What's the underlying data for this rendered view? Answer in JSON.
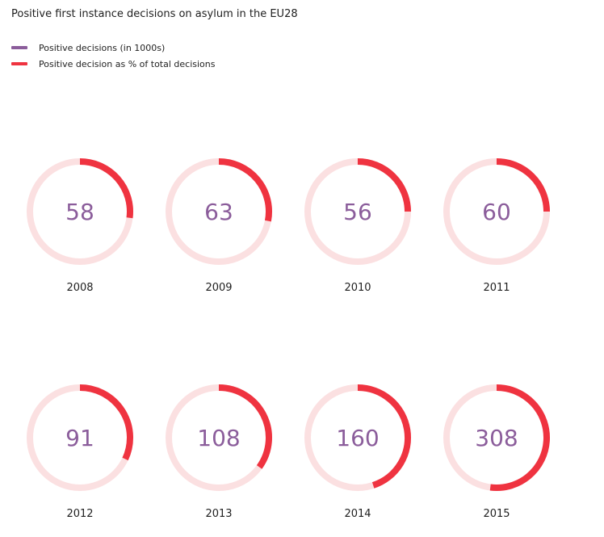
{
  "chart_data": {
    "type": "donut",
    "title": "Positive first instance decisions on asylum in the EU28",
    "colors": {
      "track": "#fbe0e1",
      "arc": "#ef3340",
      "value_text": "#8b5d9b",
      "legend_decisions": "#8b5d9b",
      "legend_percent": "#ef3340"
    },
    "legend": [
      {
        "label": "Positive decisions (in 1000s)",
        "color": "#8b5d9b"
      },
      {
        "label": "Positive decision as % of total decisions",
        "color": "#ef3340"
      }
    ],
    "series": [
      {
        "name": "Positive decisions (in 1000s)",
        "values": [
          58,
          63,
          56,
          60,
          91,
          108,
          160,
          308
        ]
      },
      {
        "name": "Positive decision as % of total decisions",
        "values": [
          0.27,
          0.28,
          0.25,
          0.25,
          0.32,
          0.35,
          0.45,
          0.52
        ]
      }
    ],
    "categories": [
      "2008",
      "2009",
      "2010",
      "2011",
      "2012",
      "2013",
      "2014",
      "2015"
    ]
  }
}
